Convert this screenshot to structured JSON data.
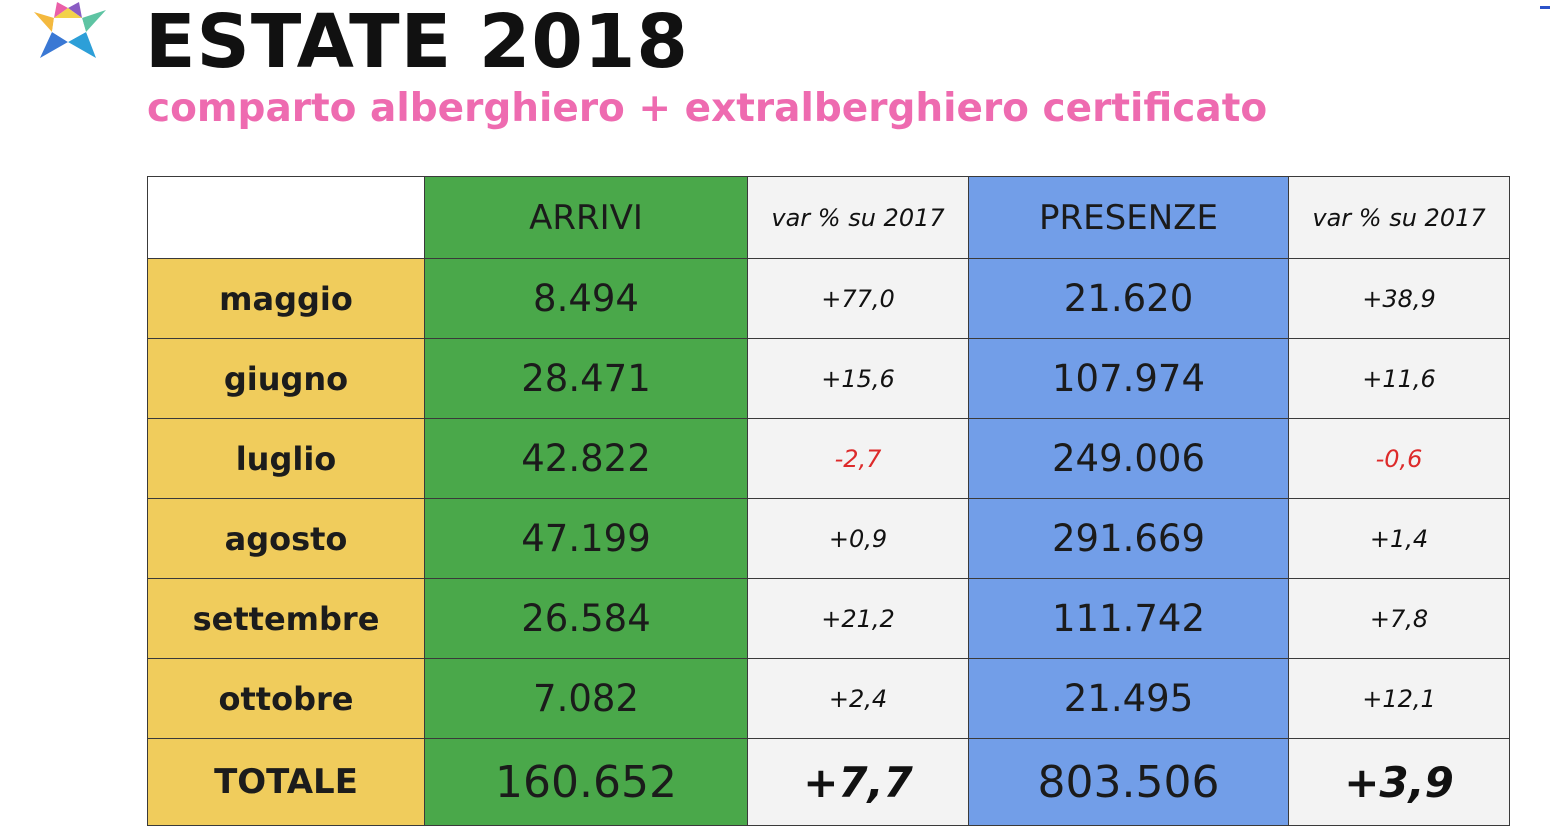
{
  "header": {
    "title": "ESTATE 2018",
    "subtitle": "comparto alberghiero + extralberghiero certificato"
  },
  "colors": {
    "title": "#111111",
    "subtitle": "#ee6bb0",
    "month_col": "#f0cc5c",
    "arrivi_col": "#4aa84a",
    "presenze_col": "#729ee8",
    "var_col": "#f3f3f3",
    "negative": "#dd2a2a"
  },
  "table": {
    "headers": [
      "",
      "ARRIVI",
      "var % su 2017",
      "PRESENZE",
      "var % su 2017"
    ],
    "rows": [
      {
        "month": "maggio",
        "arrivi": "8.494",
        "var_arrivi": "+77,0",
        "presenze": "21.620",
        "var_presenze": "+38,9"
      },
      {
        "month": "giugno",
        "arrivi": "28.471",
        "var_arrivi": "+15,6",
        "presenze": "107.974",
        "var_presenze": "+11,6"
      },
      {
        "month": "luglio",
        "arrivi": "42.822",
        "var_arrivi": "-2,7",
        "presenze": "249.006",
        "var_presenze": "-0,6"
      },
      {
        "month": "agosto",
        "arrivi": "47.199",
        "var_arrivi": "+0,9",
        "presenze": "291.669",
        "var_presenze": "+1,4"
      },
      {
        "month": "settembre",
        "arrivi": "26.584",
        "var_arrivi": "+21,2",
        "presenze": "111.742",
        "var_presenze": "+7,8"
      },
      {
        "month": "ottobre",
        "arrivi": "7.082",
        "var_arrivi": "+2,4",
        "presenze": "21.495",
        "var_presenze": "+12,1"
      }
    ],
    "total": {
      "label": "TOTALE",
      "arrivi": "160.652",
      "var_arrivi": "+7,7",
      "presenze": "803.506",
      "var_presenze": "+3,9"
    }
  }
}
